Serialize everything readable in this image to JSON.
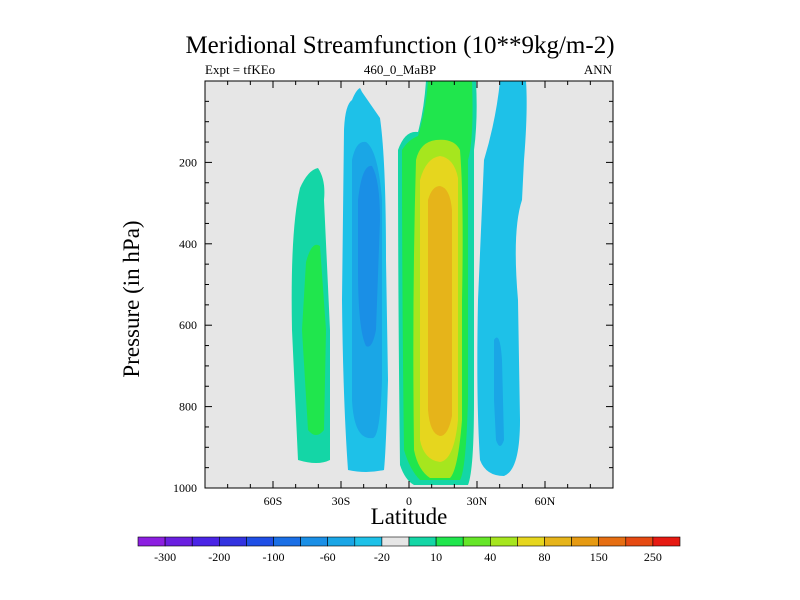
{
  "chart_data": {
    "type": "heatmap",
    "title": "Meridional Streamfunction (10**9kg/m-2)",
    "subtitle_left": "Expt = tfKEo",
    "subtitle_center": "460_0_MaBP",
    "subtitle_right": "ANN",
    "xlabel": "Latitude",
    "ylabel": "Pressure (in hPa)",
    "xlim": [
      -90,
      90
    ],
    "ylim": [
      1000,
      0
    ],
    "x_tick_labels": [
      "60S",
      "30S",
      "0",
      "30N",
      "60N"
    ],
    "x_tick_values": [
      -60,
      -30,
      0,
      30,
      60
    ],
    "y_tick_labels": [
      "200",
      "400",
      "600",
      "800",
      "1000"
    ],
    "y_tick_values": [
      200,
      400,
      600,
      800,
      1000
    ],
    "background_color": "#e6e6e6",
    "colorbar": {
      "labels": [
        "-300",
        "-200",
        "-100",
        "-60",
        "-20",
        "10",
        "40",
        "80",
        "150",
        "250"
      ],
      "colors": [
        "#8c1fe0",
        "#6a1fe0",
        "#4a24e6",
        "#3333e0",
        "#1f4fe6",
        "#1a6fe6",
        "#1a8fe6",
        "#1aa6e6",
        "#1ec1e8",
        "#e6e6e6",
        "#14d6a6",
        "#20e64d",
        "#66e628",
        "#a6e61e",
        "#e6d61e",
        "#e6b41a",
        "#e69a12",
        "#e66e12",
        "#e64a12",
        "#e61a12"
      ]
    },
    "contour_cells": [
      {
        "name": "southern-ferrel-cell",
        "sign": "positive",
        "lat_range": [
          -48,
          -36
        ],
        "pressure_range": [
          205,
          960
        ],
        "max_level": "40",
        "core_lat": -42,
        "core_pressure_range": [
          250,
          860
        ]
      },
      {
        "name": "southern-hadley-cell",
        "sign": "negative",
        "lat_range": [
          -30,
          -5
        ],
        "pressure_range": [
          15,
          975
        ],
        "min_level": "-100",
        "core_lat": -16,
        "core_pressure_range": [
          240,
          700
        ]
      },
      {
        "name": "northern-hadley-cell",
        "sign": "positive",
        "lat_range": [
          -5,
          28
        ],
        "pressure_range": [
          0,
          985
        ],
        "max_level": "150",
        "core_lat": 12,
        "core_pressure_range": [
          300,
          820
        ]
      },
      {
        "name": "northern-ferrel-cell",
        "sign": "negative",
        "lat_range": [
          32,
          50
        ],
        "pressure_range": [
          0,
          965
        ],
        "min_level": "-60",
        "core_lat": 40,
        "core_pressure_range": [
          650,
          830
        ]
      }
    ]
  }
}
